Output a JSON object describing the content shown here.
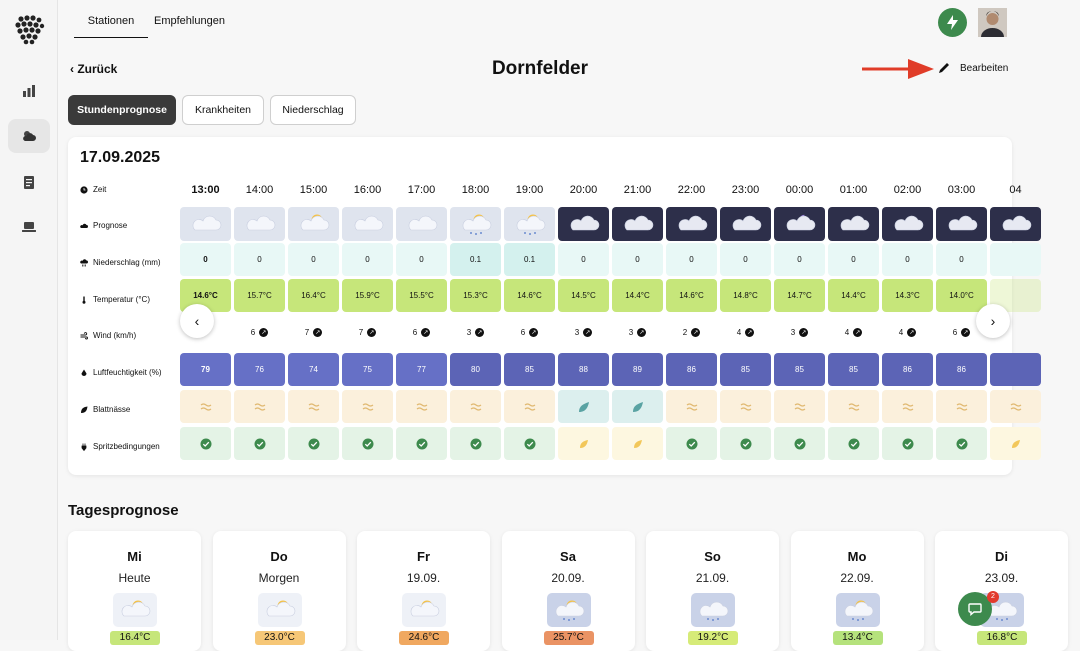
{
  "nav": {
    "tabs": [
      "Stationen",
      "Empfehlungen"
    ]
  },
  "header": {
    "back": "Zurück",
    "title": "Dornfelder",
    "edit": "Bearbeiten"
  },
  "subtabs": [
    "Stundenprognose",
    "Krankheiten",
    "Niederschlag"
  ],
  "hourly": {
    "date": "17.09.2025",
    "labels": {
      "time": "Zeit",
      "forecast": "Prognose",
      "rain": "Niederschlag (mm)",
      "temp": "Temperatur (°C)",
      "wind": "Wind (km/h)",
      "humidity": "Luftfeuchtigkeit (%)",
      "leaf": "Blattnässe",
      "spray": "Spritzbedingungen"
    },
    "times": [
      "13:00",
      "14:00",
      "15:00",
      "16:00",
      "17:00",
      "18:00",
      "19:00",
      "20:00",
      "21:00",
      "22:00",
      "23:00",
      "00:00",
      "01:00",
      "02:00",
      "03:00",
      "04"
    ],
    "forecast_icons": [
      "cloud-icon",
      "cloud-icon",
      "partly-sunny-icon",
      "cloud-icon",
      "cloud-icon",
      "sun-rain-icon",
      "sun-rain-icon",
      "cloud-night-icon",
      "cloud-night-icon",
      "cloud-night-icon",
      "cloud-night-icon",
      "moon-cloud-icon",
      "cloud-night-icon",
      "cloud-night-icon",
      "cloud-night-icon",
      "cloud-night-icon"
    ],
    "night": [
      false,
      false,
      false,
      false,
      false,
      false,
      false,
      true,
      true,
      true,
      true,
      true,
      true,
      true,
      true,
      true
    ],
    "rain": [
      "0",
      "0",
      "0",
      "0",
      "0",
      "0.1",
      "0.1",
      "0",
      "0",
      "0",
      "0",
      "0",
      "0",
      "0",
      "0",
      ""
    ],
    "temp": [
      "14.6°C",
      "15.7°C",
      "16.4°C",
      "15.9°C",
      "15.5°C",
      "15.3°C",
      "14.6°C",
      "14.5°C",
      "14.4°C",
      "14.6°C",
      "14.8°C",
      "14.7°C",
      "14.4°C",
      "14.3°C",
      "14.0°C",
      ""
    ],
    "wind": [
      "",
      "6",
      "7",
      "7",
      "6",
      "3",
      "6",
      "3",
      "3",
      "2",
      "4",
      "3",
      "4",
      "4",
      "6",
      ""
    ],
    "humidity": [
      "79",
      "76",
      "74",
      "75",
      "77",
      "80",
      "85",
      "88",
      "89",
      "86",
      "85",
      "85",
      "85",
      "86",
      "86",
      ""
    ],
    "leaf_wet": [
      false,
      false,
      false,
      false,
      false,
      false,
      false,
      true,
      true,
      false,
      false,
      false,
      false,
      false,
      false,
      false
    ],
    "spray_ok": [
      true,
      true,
      true,
      true,
      true,
      true,
      true,
      false,
      false,
      true,
      true,
      true,
      true,
      true,
      true,
      false
    ]
  },
  "daily": {
    "title": "Tagesprognose",
    "days": [
      {
        "name": "Mi",
        "sub": "Heute",
        "temp": "16.4°C",
        "color": "#c6e67a",
        "icon": "partly-sunny-icon",
        "rain": false
      },
      {
        "name": "Do",
        "sub": "Morgen",
        "temp": "23.0°C",
        "color": "#f6c777",
        "icon": "partly-sunny-icon",
        "rain": false
      },
      {
        "name": "Fr",
        "sub": "19.09.",
        "temp": "24.6°C",
        "color": "#f0a860",
        "icon": "partly-sunny-icon",
        "rain": false
      },
      {
        "name": "Sa",
        "sub": "20.09.",
        "temp": "25.7°C",
        "color": "#ea9364",
        "icon": "rain-sun-icon",
        "rain": true
      },
      {
        "name": "So",
        "sub": "21.09.",
        "temp": "19.2°C",
        "color": "#d6eb78",
        "icon": "rain-icon",
        "rain": true
      },
      {
        "name": "Mo",
        "sub": "22.09.",
        "temp": "13.4°C",
        "color": "#b5e27c",
        "icon": "rain-sun-icon",
        "rain": true
      },
      {
        "name": "Di",
        "sub": "23.09.",
        "temp": "16.8°C",
        "color": "#c6e67a",
        "icon": "rain-icon",
        "rain": true
      }
    ]
  },
  "chat": {
    "badge": "2"
  }
}
